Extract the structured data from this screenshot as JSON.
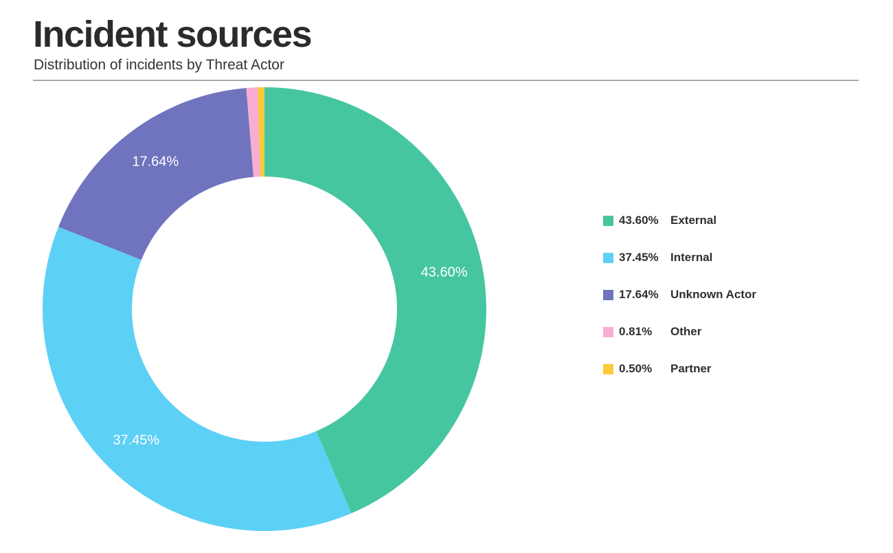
{
  "header": {
    "title": "Incident sources",
    "subtitle": "Distribution of incidents by Threat Actor"
  },
  "chart_data": {
    "type": "pie",
    "variant": "donut",
    "title": "Incident sources",
    "subtitle": "Distribution of incidents by Threat Actor",
    "unit": "%",
    "legend_position": "right",
    "series": [
      {
        "name": "External",
        "value": 43.6,
        "label": "43.60%",
        "color": "#46c6a0",
        "show_slice_label": true
      },
      {
        "name": "Internal",
        "value": 37.45,
        "label": "37.45%",
        "color": "#5dd0f5",
        "show_slice_label": true
      },
      {
        "name": "Unknown Actor",
        "value": 17.64,
        "label": "17.64%",
        "color": "#7073bd",
        "show_slice_label": true
      },
      {
        "name": "Other",
        "value": 0.81,
        "label": "0.81%",
        "color": "#f8aed2",
        "show_slice_label": false
      },
      {
        "name": "Partner",
        "value": 0.5,
        "label": "0.50%",
        "color": "#fcca3c",
        "show_slice_label": false
      }
    ]
  }
}
